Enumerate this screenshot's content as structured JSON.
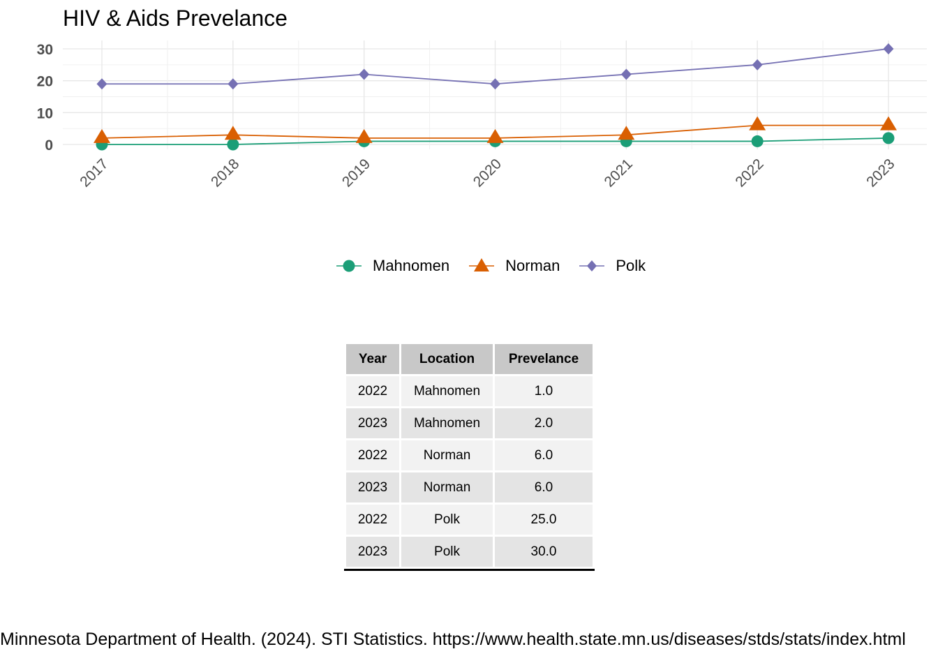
{
  "chart_data": {
    "type": "line",
    "title": "HIV & Aids Prevelance",
    "xlabel": "",
    "ylabel": "",
    "categories": [
      "2017",
      "2018",
      "2019",
      "2020",
      "2021",
      "2022",
      "2023"
    ],
    "ylim": [
      0,
      30
    ],
    "yticks": [
      0,
      10,
      20,
      30
    ],
    "grid": true,
    "legend_position": "bottom",
    "series": [
      {
        "name": "Mahnomen",
        "color": "#1b9e77",
        "marker": "circle",
        "values": [
          0,
          0,
          1,
          1,
          1,
          1,
          2
        ]
      },
      {
        "name": "Norman",
        "color": "#d95f02",
        "marker": "triangle",
        "values": [
          2,
          3,
          2,
          2,
          3,
          6,
          6
        ]
      },
      {
        "name": "Polk",
        "color": "#7570b3",
        "marker": "diamond",
        "values": [
          19,
          19,
          22,
          19,
          22,
          25,
          30
        ]
      }
    ]
  },
  "table": {
    "headers": [
      "Year",
      "Location",
      "Prevelance"
    ],
    "rows": [
      [
        "2022",
        "Mahnomen",
        "1.0"
      ],
      [
        "2023",
        "Mahnomen",
        "2.0"
      ],
      [
        "2022",
        "Norman",
        "6.0"
      ],
      [
        "2023",
        "Norman",
        "6.0"
      ],
      [
        "2022",
        "Polk",
        "25.0"
      ],
      [
        "2023",
        "Polk",
        "30.0"
      ]
    ]
  },
  "source": "Minnesota Department of Health. (2024). STI Statistics. https://www.health.state.mn.us/diseases/stds/stats/index.html"
}
